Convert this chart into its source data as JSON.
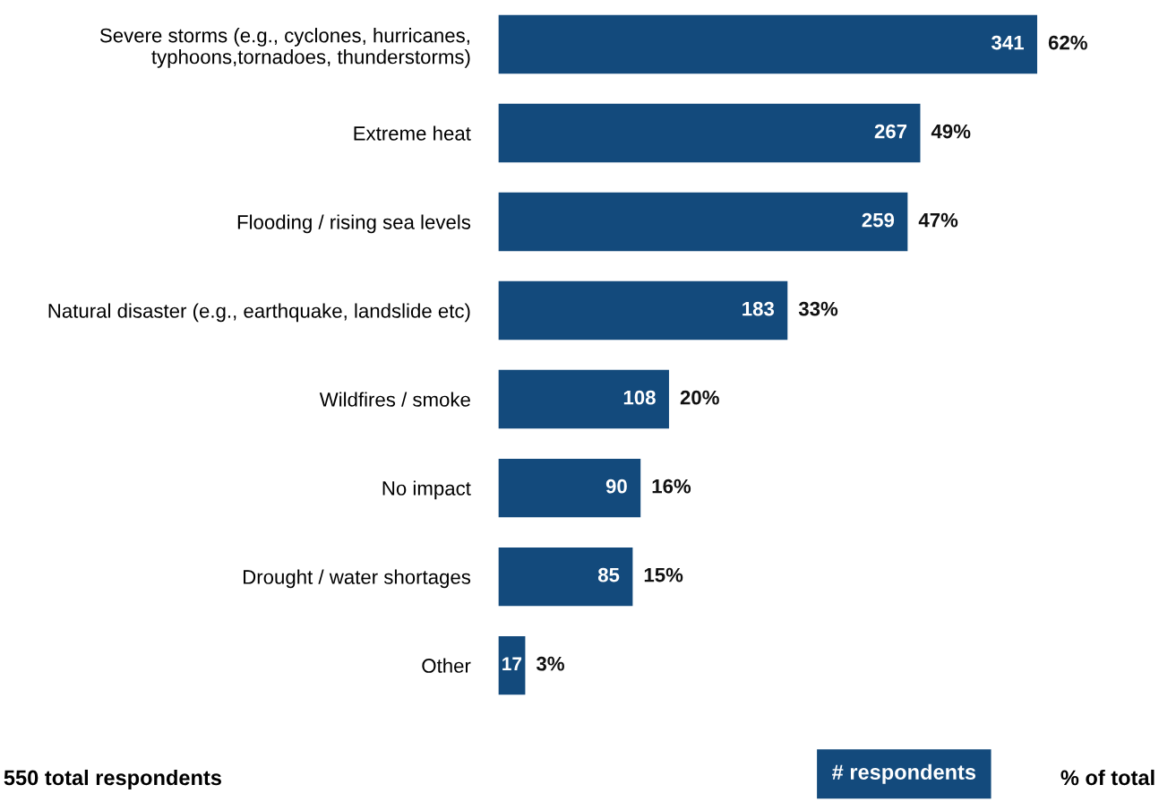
{
  "chart_data": {
    "type": "bar",
    "orientation": "horizontal",
    "categories": [
      "Severe storms (e.g., cyclones, hurricanes,\ntyphoons,tornadoes, thunderstorms)",
      "Extreme heat",
      "Flooding / rising sea levels",
      "Natural disaster (e.g., earthquake, landslide etc)",
      "Wildfires / smoke",
      "No impact",
      "Drought / water shortages",
      "Other"
    ],
    "series": [
      {
        "name": "# respondents",
        "color": "#134a7c",
        "values": [
          341,
          267,
          259,
          183,
          108,
          90,
          85,
          17
        ]
      }
    ],
    "data_labels": true,
    "annotations": [
      {
        "text": "62%",
        "x": 341,
        "y": "Severe storms (e.g., cyclones, hurricanes,\ntyphoons,tornadoes, thunderstorms)"
      },
      {
        "text": "49%",
        "x": 267,
        "y": "Extreme heat"
      },
      {
        "text": "47%",
        "x": 259,
        "y": "Flooding / rising sea levels"
      },
      {
        "text": "33%",
        "x": 183,
        "y": "Natural disaster (e.g., earthquake, landslide etc)"
      },
      {
        "text": "20%",
        "x": 108,
        "y": "Wildfires / smoke"
      },
      {
        "text": "16%",
        "x": 90,
        "y": "No impact"
      },
      {
        "text": "15%",
        "x": 85,
        "y": "Drought / water shortages"
      },
      {
        "text": "3%",
        "x": 17,
        "y": "Other"
      },
      "550 total respondents",
      "% of total"
    ],
    "legend": "bottom right"
  }
}
